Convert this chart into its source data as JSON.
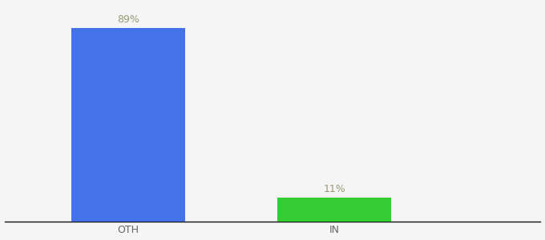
{
  "categories": [
    "OTH",
    "IN"
  ],
  "values": [
    89,
    11
  ],
  "bar_colors": [
    "#4472e8",
    "#33cc33"
  ],
  "label_texts": [
    "89%",
    "11%"
  ],
  "label_color": "#999977",
  "label_fontsize": 9,
  "ylim": [
    0,
    100
  ],
  "background_color": "#f5f5f5",
  "axis_line_color": "#111111",
  "x_positions": [
    1,
    2
  ],
  "bar_width": 0.55,
  "xlim": [
    0.4,
    3.0
  ],
  "figsize": [
    6.8,
    3.0
  ],
  "dpi": 100,
  "tick_label_color": "#666666",
  "tick_label_fontsize": 9
}
